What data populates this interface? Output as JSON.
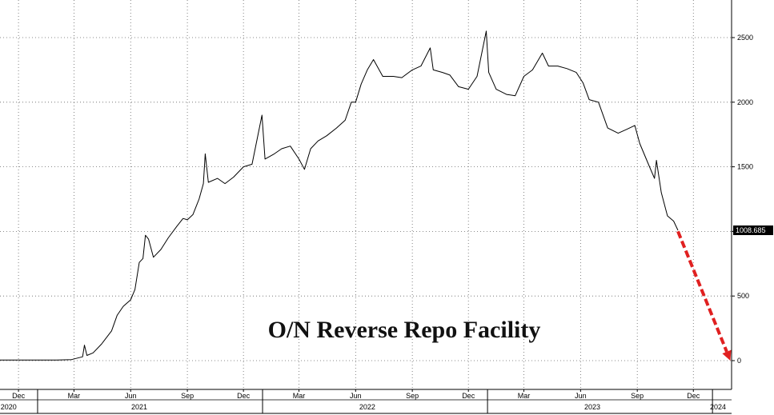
{
  "chart_data": {
    "type": "line",
    "title": "O/N Reverse Repo Facility",
    "xlabel": "",
    "ylabel": "",
    "x_range": [
      "2020-11-01",
      "2024-02-01"
    ],
    "ylim": [
      0,
      2700
    ],
    "y_ticks": [
      0,
      500,
      1000,
      1500,
      2000,
      2500
    ],
    "y_tick_labels": [
      "0",
      "500",
      "1000",
      "1500",
      "2000",
      "2500"
    ],
    "y_axis_position": "right",
    "grid": true,
    "grid_style": "dotted",
    "x_month_ticks": [
      {
        "label": "Dec",
        "date": "2020-12-01"
      },
      {
        "label": "Mar",
        "date": "2021-03-01"
      },
      {
        "label": "Jun",
        "date": "2021-06-01"
      },
      {
        "label": "Sep",
        "date": "2021-09-01"
      },
      {
        "label": "Dec",
        "date": "2021-12-01"
      },
      {
        "label": "Mar",
        "date": "2022-03-01"
      },
      {
        "label": "Jun",
        "date": "2022-06-01"
      },
      {
        "label": "Sep",
        "date": "2022-09-01"
      },
      {
        "label": "Dec",
        "date": "2022-12-01"
      },
      {
        "label": "Mar",
        "date": "2023-03-01"
      },
      {
        "label": "Jun",
        "date": "2023-06-01"
      },
      {
        "label": "Sep",
        "date": "2023-09-01"
      },
      {
        "label": "Dec",
        "date": "2023-12-01"
      }
    ],
    "x_year_labels": [
      {
        "label": "2020",
        "date": "2020-11-15"
      },
      {
        "label": "2021",
        "date": "2021-06-15"
      },
      {
        "label": "2022",
        "date": "2022-06-20"
      },
      {
        "label": "2023",
        "date": "2023-06-20"
      },
      {
        "label": "2024",
        "date": "2024-01-10"
      }
    ],
    "year_boundaries": [
      "2021-01-01",
      "2022-01-01",
      "2023-01-01",
      "2024-01-01"
    ],
    "series": [
      {
        "color": "#000000",
        "points": [
          [
            "2020-11-01",
            5
          ],
          [
            "2020-12-15",
            5
          ],
          [
            "2021-02-01",
            5
          ],
          [
            "2021-02-25",
            8
          ],
          [
            "2021-03-15",
            30
          ],
          [
            "2021-03-18",
            120
          ],
          [
            "2021-03-22",
            40
          ],
          [
            "2021-04-01",
            60
          ],
          [
            "2021-04-15",
            130
          ],
          [
            "2021-05-01",
            230
          ],
          [
            "2021-05-10",
            350
          ],
          [
            "2021-05-20",
            420
          ],
          [
            "2021-06-01",
            470
          ],
          [
            "2021-06-08",
            550
          ],
          [
            "2021-06-15",
            760
          ],
          [
            "2021-06-21",
            790
          ],
          [
            "2021-06-25",
            970
          ],
          [
            "2021-06-30",
            940
          ],
          [
            "2021-07-08",
            800
          ],
          [
            "2021-07-20",
            860
          ],
          [
            "2021-08-01",
            950
          ],
          [
            "2021-08-15",
            1040
          ],
          [
            "2021-08-25",
            1100
          ],
          [
            "2021-09-01",
            1090
          ],
          [
            "2021-09-10",
            1130
          ],
          [
            "2021-09-20",
            1250
          ],
          [
            "2021-09-27",
            1370
          ],
          [
            "2021-09-30",
            1600
          ],
          [
            "2021-10-05",
            1380
          ],
          [
            "2021-10-20",
            1410
          ],
          [
            "2021-11-01",
            1370
          ],
          [
            "2021-11-15",
            1420
          ],
          [
            "2021-12-01",
            1500
          ],
          [
            "2021-12-15",
            1520
          ],
          [
            "2021-12-31",
            1900
          ],
          [
            "2022-01-05",
            1560
          ],
          [
            "2022-01-20",
            1600
          ],
          [
            "2022-02-01",
            1640
          ],
          [
            "2022-02-15",
            1660
          ],
          [
            "2022-03-01",
            1560
          ],
          [
            "2022-03-10",
            1480
          ],
          [
            "2022-03-20",
            1640
          ],
          [
            "2022-04-01",
            1700
          ],
          [
            "2022-04-15",
            1740
          ],
          [
            "2022-05-01",
            1800
          ],
          [
            "2022-05-15",
            1860
          ],
          [
            "2022-05-25",
            2000
          ],
          [
            "2022-06-01",
            2000
          ],
          [
            "2022-06-10",
            2140
          ],
          [
            "2022-06-20",
            2250
          ],
          [
            "2022-06-30",
            2330
          ],
          [
            "2022-07-15",
            2200
          ],
          [
            "2022-08-01",
            2200
          ],
          [
            "2022-08-15",
            2190
          ],
          [
            "2022-09-01",
            2250
          ],
          [
            "2022-09-15",
            2280
          ],
          [
            "2022-09-30",
            2420
          ],
          [
            "2022-10-05",
            2250
          ],
          [
            "2022-10-20",
            2230
          ],
          [
            "2022-11-01",
            2210
          ],
          [
            "2022-11-15",
            2120
          ],
          [
            "2022-12-01",
            2100
          ],
          [
            "2022-12-15",
            2200
          ],
          [
            "2022-12-30",
            2550
          ],
          [
            "2023-01-03",
            2230
          ],
          [
            "2023-01-15",
            2100
          ],
          [
            "2023-02-01",
            2060
          ],
          [
            "2023-02-15",
            2050
          ],
          [
            "2023-03-01",
            2200
          ],
          [
            "2023-03-15",
            2250
          ],
          [
            "2023-03-31",
            2380
          ],
          [
            "2023-04-10",
            2280
          ],
          [
            "2023-04-25",
            2280
          ],
          [
            "2023-05-10",
            2260
          ],
          [
            "2023-05-25",
            2230
          ],
          [
            "2023-06-05",
            2150
          ],
          [
            "2023-06-15",
            2020
          ],
          [
            "2023-06-30",
            2000
          ],
          [
            "2023-07-15",
            1800
          ],
          [
            "2023-08-01",
            1760
          ],
          [
            "2023-08-15",
            1790
          ],
          [
            "2023-08-28",
            1820
          ],
          [
            "2023-09-05",
            1680
          ],
          [
            "2023-09-20",
            1510
          ],
          [
            "2023-09-29",
            1410
          ],
          [
            "2023-10-02",
            1550
          ],
          [
            "2023-10-10",
            1300
          ],
          [
            "2023-10-20",
            1120
          ],
          [
            "2023-10-30",
            1080
          ],
          [
            "2023-11-06",
            1008.685
          ]
        ]
      }
    ],
    "last_value": {
      "label": "1008.685",
      "value": 1008.685,
      "date": "2023-11-06"
    },
    "projection_arrow": {
      "color": "#e02020",
      "style": "dashed",
      "from": {
        "date": "2023-11-06",
        "value": 1000
      },
      "to": {
        "date": "2024-01-30",
        "value": 0
      }
    }
  }
}
